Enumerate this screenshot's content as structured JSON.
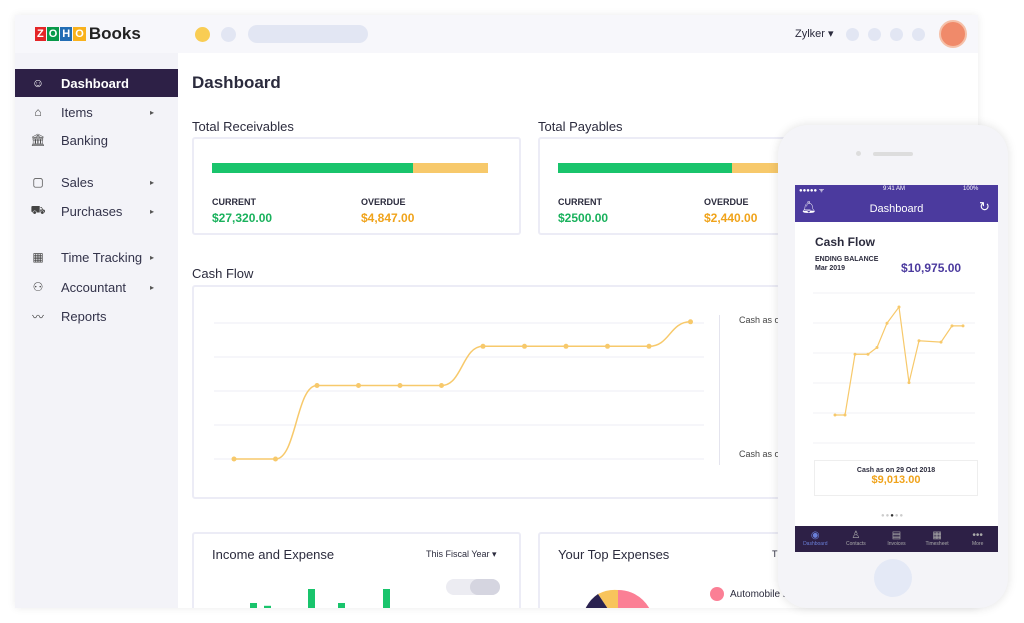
{
  "logo": {
    "brand": "ZOHO",
    "product": "Books"
  },
  "header": {
    "org": "Zylker"
  },
  "sidebar": {
    "items": [
      {
        "label": "Dashboard",
        "icon": "dashboard-icon",
        "active": true,
        "submenu": false
      },
      {
        "label": "Items",
        "icon": "basket-icon",
        "submenu": true
      },
      {
        "label": "Banking",
        "icon": "bank-icon",
        "submenu": false
      },
      {
        "label": "Sales",
        "icon": "bag-icon",
        "submenu": true
      },
      {
        "label": "Purchases",
        "icon": "cart-icon",
        "submenu": true
      },
      {
        "label": "Time Tracking",
        "icon": "calendar-icon",
        "submenu": true
      },
      {
        "label": "Accountant",
        "icon": "accountant-icon",
        "submenu": true
      },
      {
        "label": "Reports",
        "icon": "reports-icon",
        "submenu": false
      }
    ]
  },
  "main": {
    "title": "Dashboard",
    "receivables": {
      "title": "Total Receivables",
      "current_label": "CURRENT",
      "current": "$27,320.00",
      "overdue_label": "OVERDUE",
      "overdue": "$4,847.00",
      "current_fraction": 0.73
    },
    "payables": {
      "title": "Total Payables",
      "current_label": "CURRENT",
      "current": "$2500.00",
      "overdue_label": "OVERDUE",
      "overdue": "$2,440.00",
      "current_fraction": 0.63
    },
    "cashflow": {
      "title": "Cash Flow",
      "label_top": "Cash as o",
      "label_bottom": "Cash as o"
    },
    "income": {
      "title": "Income and Expense",
      "period": "This Fiscal Year"
    },
    "expenses": {
      "title": "Your Top Expenses",
      "period": "T",
      "legend": "Automobile E"
    }
  },
  "chart_data": [
    {
      "type": "line",
      "title": "Cash Flow",
      "series": [
        {
          "values": [
            0,
            0,
            1.5,
            1.5,
            1.5,
            1.5,
            2.3,
            2.3,
            2.3,
            2.3,
            2.3,
            2.8
          ]
        }
      ],
      "color": "#f7c96b"
    },
    {
      "type": "bar",
      "title": "Income and Expense",
      "values": [
        1,
        3,
        2.6,
        1.8,
        5,
        3,
        0.5,
        0.5,
        5
      ],
      "color": "#19c46c"
    },
    {
      "type": "line",
      "title": "Cash Flow (mobile)",
      "series": [
        {
          "values": [
            0,
            0,
            4.5,
            4.5,
            5,
            6.8,
            8,
            2.4,
            5.5,
            5.4,
            6.6,
            6.6
          ]
        }
      ],
      "color": "#f7c96b"
    }
  ],
  "phone": {
    "time": "9:41 AM",
    "battery": "100%",
    "title": "Dashboard",
    "card_title": "Cash Flow",
    "ending_label": "ENDING BALANCE",
    "ending_date": "Mar 2019",
    "ending_value": "$10,975.00",
    "cash_label": "Cash as on  29 Oct 2018",
    "cash_value": "$9,013.00",
    "tabs": [
      "Dashboard",
      "Contacts",
      "Invoices",
      "Timesheet",
      "More"
    ]
  },
  "colors": {
    "primary": "#2d2046",
    "phone_header": "#4b3a9e",
    "green": "#19c46c",
    "yellow": "#f7c96b",
    "orange": "#f0a31a"
  }
}
